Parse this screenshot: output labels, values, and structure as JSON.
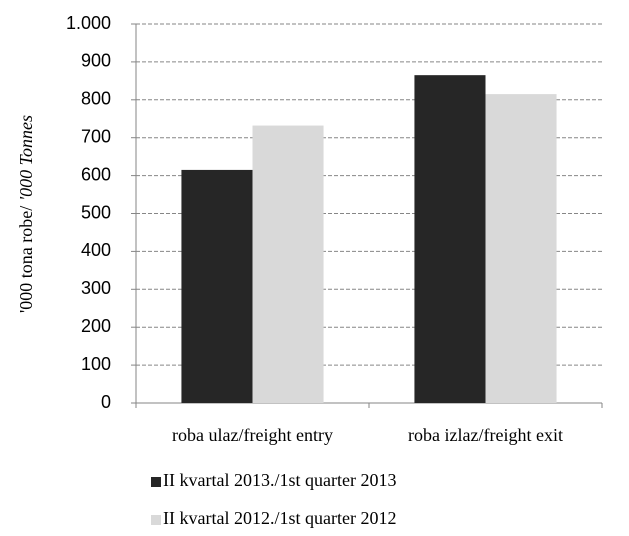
{
  "chart_data": {
    "type": "bar",
    "y_label": "'000 tona robe/",
    "y_label_en": "'000 Tonnes",
    "categories": [
      "roba ulaz/freight entry",
      "roba izlaz/freight exit"
    ],
    "series": [
      {
        "name": "II kvartal 2013./1st quarter 2013",
        "color": "#262626",
        "values": [
          615,
          865
        ]
      },
      {
        "name": "II kvartal 2012./1st quarter 2012",
        "color": "#d9d9d9",
        "values": [
          732,
          815
        ]
      }
    ],
    "ylim": [
      0,
      1000
    ],
    "yticks": [
      0,
      100,
      200,
      300,
      400,
      500,
      600,
      700,
      800,
      900,
      {
        "value": 1000,
        "label": "1.000"
      }
    ],
    "grid": true,
    "legend": "bottom"
  }
}
